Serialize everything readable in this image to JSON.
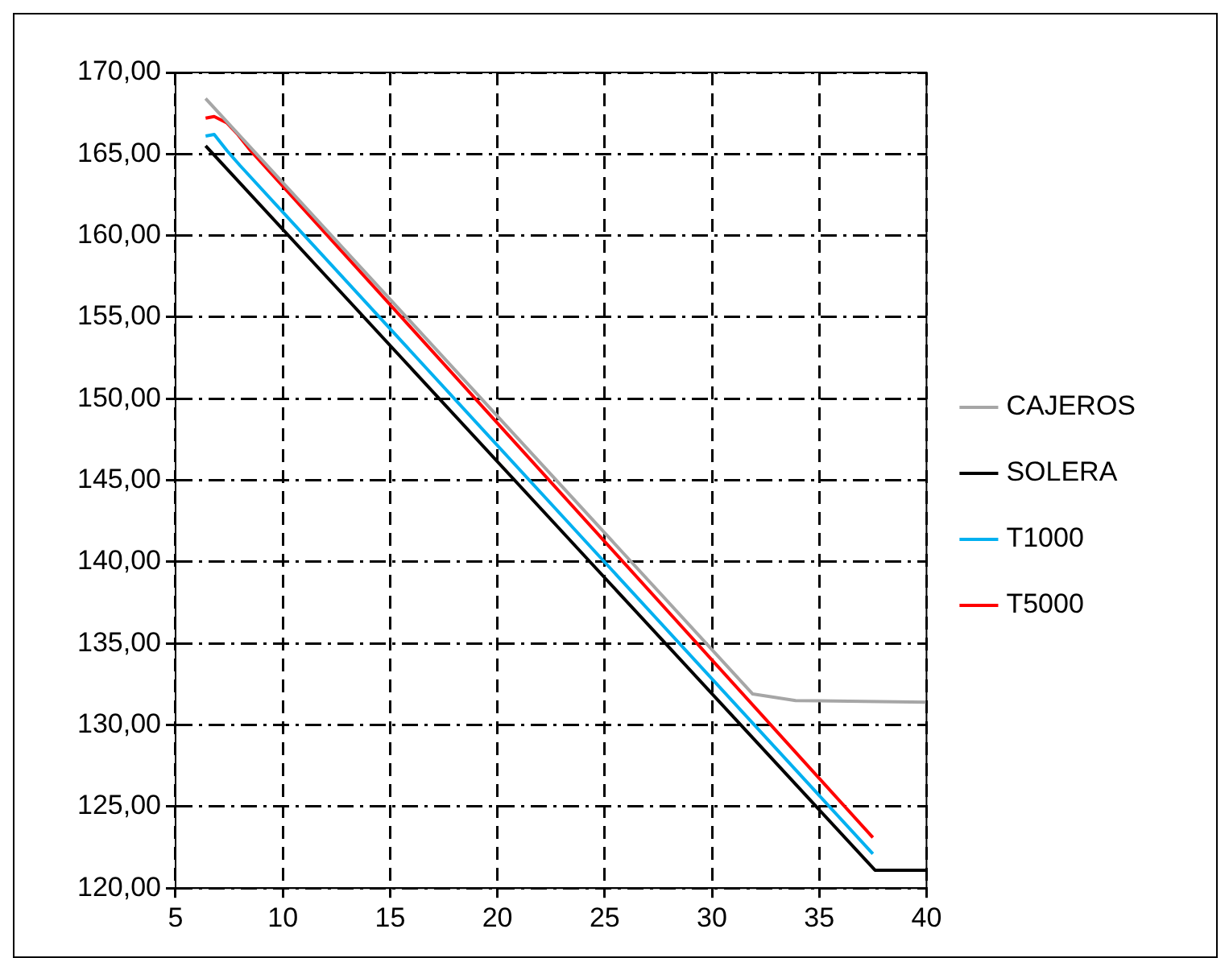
{
  "chart_data": {
    "type": "line",
    "xlim": [
      5,
      40
    ],
    "xticks": [
      5,
      10,
      15,
      20,
      25,
      30,
      35,
      40
    ],
    "ylim": [
      120,
      170
    ],
    "yticks": [
      {
        "value": 120,
        "label": "120,00"
      },
      {
        "value": 125,
        "label": "125,00"
      },
      {
        "value": 130,
        "label": "130,00"
      },
      {
        "value": 135,
        "label": "135,00"
      },
      {
        "value": 140,
        "label": "140,00"
      },
      {
        "value": 145,
        "label": "145,00"
      },
      {
        "value": 150,
        "label": "150,00"
      },
      {
        "value": 155,
        "label": "155,00"
      },
      {
        "value": 160,
        "label": "160,00"
      },
      {
        "value": 165,
        "label": "165,00"
      },
      {
        "value": 170,
        "label": "170,00"
      }
    ],
    "grid": true,
    "legend": "right",
    "marker": "none",
    "line_style": "solid",
    "series": [
      {
        "name": "CAJEROS",
        "color": "#a6a6a6",
        "x": [
          6.4,
          31.9,
          33.9,
          40
        ],
        "values": [
          168.4,
          131.9,
          131.5,
          131.4
        ]
      },
      {
        "name": "SOLERA",
        "color": "#000000",
        "x": [
          6.4,
          37.6,
          40
        ],
        "values": [
          165.5,
          121.1,
          121.1
        ]
      },
      {
        "name": "T1000",
        "color": "#00b0f0",
        "x": [
          6.4,
          6.8,
          7.4,
          8.0,
          37.5
        ],
        "values": [
          166.1,
          166.2,
          165.2,
          164.3,
          122.1
        ]
      },
      {
        "name": "T5000",
        "color": "#ff0000",
        "x": [
          6.4,
          6.8,
          7.4,
          7.9,
          8.5,
          37.5
        ],
        "values": [
          167.2,
          167.3,
          166.9,
          166.2,
          165.2,
          123.1
        ]
      }
    ]
  }
}
